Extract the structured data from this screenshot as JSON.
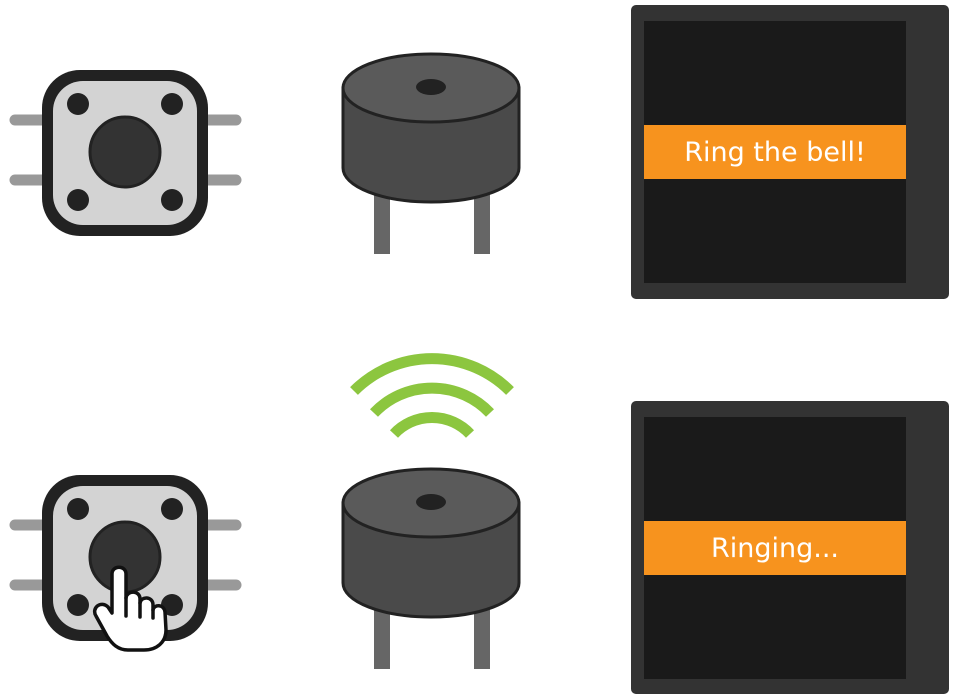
{
  "states": [
    {
      "id": "idle",
      "button": {
        "pressed": false
      },
      "buzzer": {
        "sounding": false
      },
      "screen": {
        "message": "Ring the bell!"
      }
    },
    {
      "id": "ringing",
      "button": {
        "pressed": true
      },
      "buzzer": {
        "sounding": true
      },
      "screen": {
        "message": "Ringing..."
      }
    }
  ],
  "colors": {
    "button_frame": "#222222",
    "button_body": "#d3d3d3",
    "button_cap": "#333333",
    "button_pins": "#999999",
    "buzzer_body": "#4a4a4a",
    "buzzer_top": "#5a5a5a",
    "buzzer_legs": "#666666",
    "sound_waves": "#8cc63f",
    "screen_bezel": "#333333",
    "screen_face": "#1a1a1a",
    "banner": "#f7931e",
    "banner_text": "#ffffff"
  },
  "icons": {
    "wave": "sound-wave-icon",
    "hand": "pointing-hand-icon"
  }
}
